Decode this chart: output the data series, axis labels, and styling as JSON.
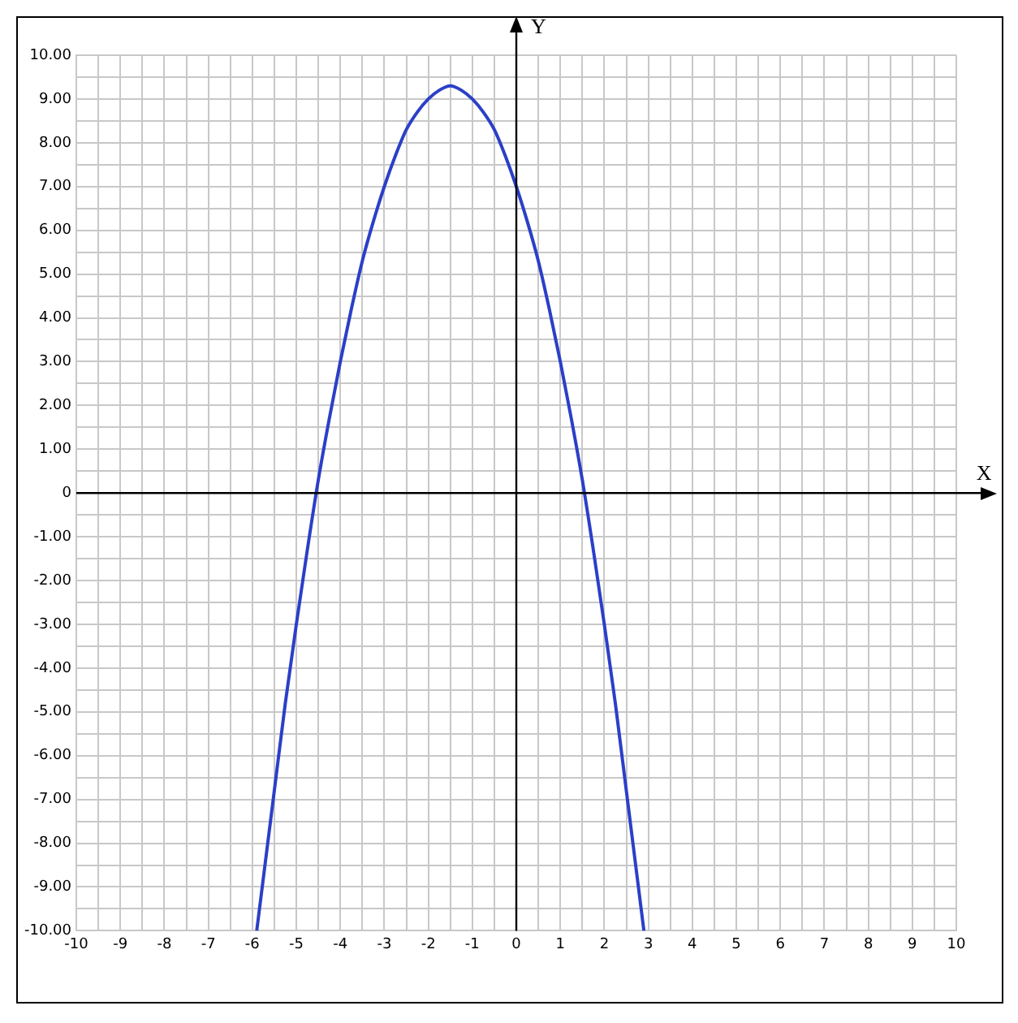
{
  "chart_data": {
    "type": "line",
    "xlabel": "X",
    "ylabel": "Y",
    "x": [
      -5.9,
      -5.75,
      -5.5,
      -5.25,
      -5,
      -4.75,
      -4.5,
      -4.25,
      -4,
      -3.75,
      -3.5,
      -3.25,
      -3,
      -2.75,
      -2.5,
      -2.25,
      -2,
      -1.75,
      -1.5,
      -1.25,
      -1,
      -0.75,
      -0.5,
      -0.25,
      0,
      0.25,
      0.5,
      0.75,
      1,
      1.25,
      1.5,
      1.75,
      2,
      2.25,
      2.5,
      2.75,
      2.9
    ],
    "series": [
      {
        "color": "#2b3fc8",
        "values": [
          -10,
          -8.8,
          -6.8,
          -4.8,
          -3,
          -1.3,
          0.3,
          1.7,
          3,
          4.2,
          5.3,
          6.2,
          7,
          7.7,
          8.3,
          8.7,
          9,
          9.2,
          9.3,
          9.2,
          9,
          8.7,
          8.3,
          7.7,
          7,
          6.2,
          5.3,
          4.2,
          3,
          1.7,
          0.3,
          -1.3,
          -3,
          -4.8,
          -6.8,
          -8.8,
          -10
        ]
      }
    ],
    "xlim": [
      -10,
      10
    ],
    "ylim": [
      -10,
      10
    ],
    "xticks": [
      -10,
      {
        "value": -9.5,
        "label": null
      },
      -9,
      {
        "value": -8.5,
        "label": null
      },
      -8,
      {
        "value": -7.5,
        "label": null
      },
      -7,
      {
        "value": -6.5,
        "label": null
      },
      -6,
      {
        "value": -5.5,
        "label": null
      },
      -5,
      {
        "value": -4.5,
        "label": null
      },
      -4,
      {
        "value": -3.5,
        "label": null
      },
      -3,
      {
        "value": -2.5,
        "label": null
      },
      -2,
      {
        "value": -1.5,
        "label": null
      },
      -1,
      {
        "value": -0.5,
        "label": null
      },
      0,
      {
        "value": 0.5,
        "label": null
      },
      1,
      {
        "value": 1.5,
        "label": null
      },
      2,
      {
        "value": 2.5,
        "label": null
      },
      3,
      {
        "value": 3.5,
        "label": null
      },
      4,
      {
        "value": 4.5,
        "label": null
      },
      5,
      {
        "value": 5.5,
        "label": null
      },
      6,
      {
        "value": 6.5,
        "label": null
      },
      7,
      {
        "value": 7.5,
        "label": null
      },
      8,
      {
        "value": 8.5,
        "label": null
      },
      9,
      {
        "value": 9.5,
        "label": null
      },
      10
    ],
    "yticks": [
      {
        "value": -10,
        "label": "-10.00"
      },
      {
        "value": -9.5,
        "label": null
      },
      {
        "value": -9,
        "label": "-9.00"
      },
      {
        "value": -8.5,
        "label": null
      },
      {
        "value": -8,
        "label": "-8.00"
      },
      {
        "value": -7.5,
        "label": null
      },
      {
        "value": -7,
        "label": "-7.00"
      },
      {
        "value": -6.5,
        "label": null
      },
      {
        "value": -6,
        "label": "-6.00"
      },
      {
        "value": -5.5,
        "label": null
      },
      {
        "value": -5,
        "label": "-5.00"
      },
      {
        "value": -4.5,
        "label": null
      },
      {
        "value": -4,
        "label": "-4.00"
      },
      {
        "value": -3.5,
        "label": null
      },
      {
        "value": -3,
        "label": "-3.00"
      },
      {
        "value": -2.5,
        "label": null
      },
      {
        "value": -2,
        "label": "-2.00"
      },
      {
        "value": -1.5,
        "label": null
      },
      {
        "value": -1,
        "label": "-1.00"
      },
      {
        "value": -0.5,
        "label": null
      },
      0,
      {
        "value": 0.5,
        "label": null
      },
      {
        "value": 1,
        "label": "1.00"
      },
      {
        "value": 1.5,
        "label": null
      },
      {
        "value": 2,
        "label": "2.00"
      },
      {
        "value": 2.5,
        "label": null
      },
      {
        "value": 3,
        "label": "3.00"
      },
      {
        "value": 3.5,
        "label": null
      },
      {
        "value": 4,
        "label": "4.00"
      },
      {
        "value": 4.5,
        "label": null
      },
      {
        "value": 5,
        "label": "5.00"
      },
      {
        "value": 5.5,
        "label": null
      },
      {
        "value": 6,
        "label": "6.00"
      },
      {
        "value": 6.5,
        "label": null
      },
      {
        "value": 7,
        "label": "7.00"
      },
      {
        "value": 7.5,
        "label": null
      },
      {
        "value": 8,
        "label": "8.00"
      },
      {
        "value": 8.5,
        "label": null
      },
      {
        "value": 9,
        "label": "9.00"
      },
      {
        "value": 9.5,
        "label": null
      },
      {
        "value": 10,
        "label": "10.00"
      }
    ],
    "grid": true,
    "marker": "none",
    "line_style": "solid"
  }
}
